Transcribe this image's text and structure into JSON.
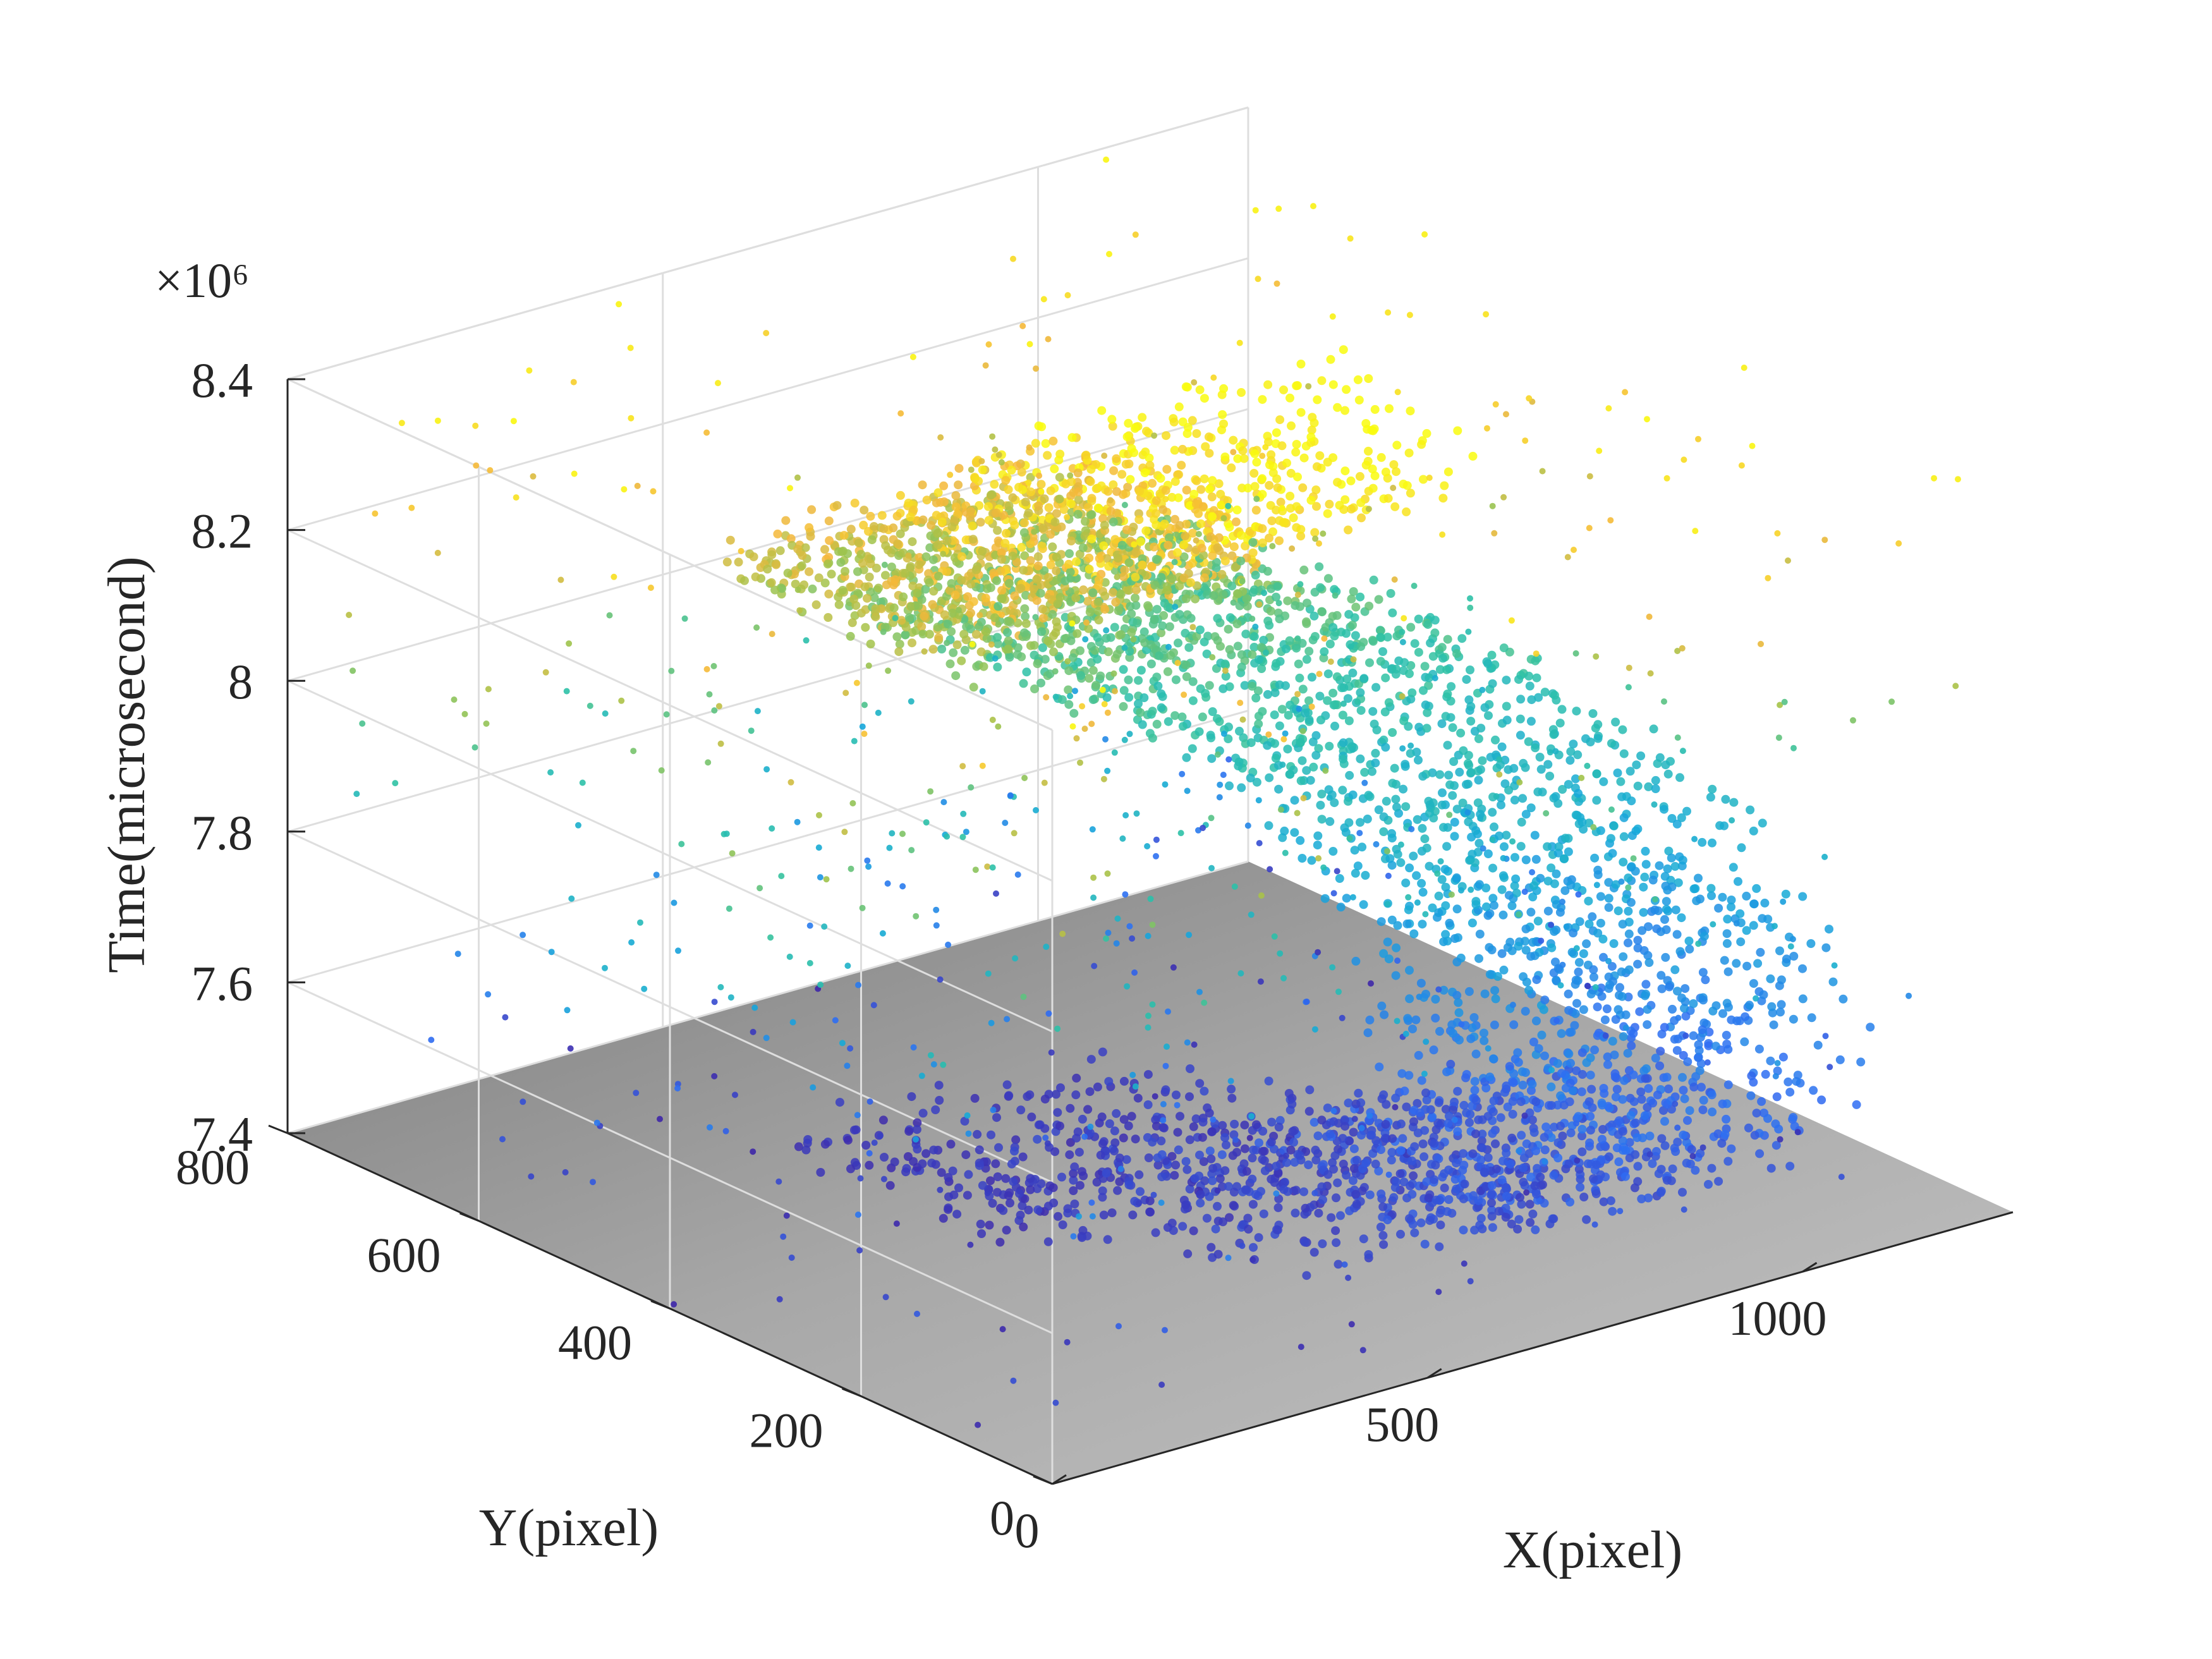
{
  "chart_data": {
    "type": "scatter",
    "dimensions": 3,
    "exponent_label": "×10⁶",
    "xlabel": "X(pixel)",
    "ylabel": "Y(pixel)",
    "zlabel": "Time(microsecond)",
    "xlim": [
      0,
      1280
    ],
    "ylim": [
      0,
      800
    ],
    "zlim": [
      7.4,
      8.4
    ],
    "z_scale": 1000000,
    "x_ticks": [
      {
        "value": 0,
        "label": "0"
      },
      {
        "value": 500,
        "label": "500"
      },
      {
        "value": 1000,
        "label": "1000"
      }
    ],
    "y_ticks": [
      {
        "value": 0,
        "label": "0"
      },
      {
        "value": 200,
        "label": "200"
      },
      {
        "value": 400,
        "label": "400"
      },
      {
        "value": 600,
        "label": "600"
      },
      {
        "value": 800,
        "label": "800"
      }
    ],
    "z_ticks": [
      {
        "value": 7.4,
        "label": "7.4"
      },
      {
        "value": 7.6,
        "label": "7.6"
      },
      {
        "value": 7.8,
        "label": "7.8"
      },
      {
        "value": 8.0,
        "label": "8"
      },
      {
        "value": 8.2,
        "label": "8.2"
      },
      {
        "value": 8.4,
        "label": "8.4"
      }
    ],
    "grid": true,
    "colormap": [
      "#3e26a8",
      "#2f6cf3",
      "#15a9d9",
      "#2ec2a5",
      "#a2c34a",
      "#f5b73a",
      "#f9fb0e"
    ],
    "floor_color": "#a6a6a6",
    "series": [
      {
        "kind": "main-event-stream",
        "points_xyt": [
          [
            520,
            480,
            7.43
          ],
          [
            580,
            360,
            7.45
          ],
          [
            650,
            270,
            7.47
          ],
          [
            720,
            200,
            7.49
          ],
          [
            800,
            150,
            7.52
          ],
          [
            880,
            130,
            7.55
          ],
          [
            950,
            160,
            7.6
          ],
          [
            1010,
            210,
            7.66
          ],
          [
            1050,
            280,
            7.72
          ],
          [
            1060,
            360,
            7.78
          ],
          [
            1040,
            440,
            7.84
          ],
          [
            990,
            510,
            7.89
          ],
          [
            920,
            560,
            7.94
          ],
          [
            840,
            590,
            7.98
          ],
          [
            760,
            600,
            8.02
          ],
          [
            680,
            590,
            8.07
          ],
          [
            610,
            560,
            8.12
          ],
          [
            560,
            510,
            8.18
          ],
          [
            540,
            450,
            8.24
          ],
          [
            560,
            380,
            8.3
          ],
          [
            620,
            330,
            8.36
          ],
          [
            700,
            300,
            8.42
          ]
        ]
      }
    ]
  }
}
